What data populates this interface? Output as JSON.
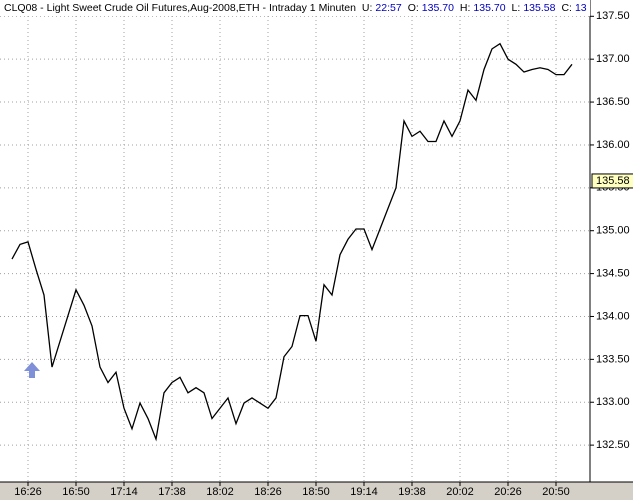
{
  "header": {
    "title": "CLQ08 - Light Sweet Crude Oil Futures,Aug-2008,ETH - Intraday 1 Minuten",
    "stats": [
      {
        "label": "U:",
        "value": "22:57"
      },
      {
        "label": "O:",
        "value": "135.70"
      },
      {
        "label": "H:",
        "value": "135.70"
      },
      {
        "label": "L:",
        "value": "135.58"
      },
      {
        "label": "C:",
        "value": "13"
      }
    ]
  },
  "chart_data": {
    "type": "line",
    "color": "#000000",
    "grid": true,
    "x": [
      "16:18",
      "16:22",
      "16:26",
      "16:30",
      "16:34",
      "16:38",
      "16:42",
      "16:46",
      "16:50",
      "16:54",
      "16:58",
      "17:02",
      "17:06",
      "17:10",
      "17:14",
      "17:18",
      "17:22",
      "17:26",
      "17:30",
      "17:34",
      "17:38",
      "17:42",
      "17:46",
      "17:50",
      "17:54",
      "17:58",
      "18:02",
      "18:06",
      "18:10",
      "18:14",
      "18:18",
      "18:22",
      "18:26",
      "18:30",
      "18:34",
      "18:38",
      "18:42",
      "18:46",
      "18:50",
      "18:54",
      "18:58",
      "19:02",
      "19:06",
      "19:10",
      "19:14",
      "19:18",
      "19:22",
      "19:26",
      "19:30",
      "19:34",
      "19:38",
      "19:42",
      "19:46",
      "19:50",
      "19:54",
      "19:58",
      "20:02",
      "20:06",
      "20:10",
      "20:14",
      "20:18",
      "20:22",
      "20:26",
      "20:30",
      "20:34",
      "20:38",
      "20:42",
      "20:46",
      "20:50",
      "20:54",
      "20:58"
    ],
    "values": [
      134.67,
      134.84,
      134.87,
      134.55,
      134.25,
      133.41,
      133.71,
      134.01,
      134.31,
      134.13,
      133.89,
      133.41,
      133.23,
      133.35,
      132.93,
      132.69,
      132.99,
      132.81,
      132.57,
      133.11,
      133.23,
      133.29,
      133.11,
      133.17,
      133.11,
      132.81,
      132.93,
      133.05,
      132.75,
      132.99,
      133.05,
      132.99,
      132.93,
      133.05,
      133.53,
      133.65,
      134.01,
      134.01,
      133.71,
      134.37,
      134.25,
      134.72,
      134.9,
      135.02,
      135.02,
      134.78,
      135.02,
      135.26,
      135.5,
      136.28,
      136.1,
      136.16,
      136.04,
      136.04,
      136.28,
      136.1,
      136.28,
      136.64,
      136.52,
      136.88,
      137.12,
      137.18,
      137.0,
      136.94,
      136.85,
      136.88,
      136.9,
      136.88,
      136.82,
      136.82,
      136.94
    ],
    "xticks": [
      "16:26",
      "16:50",
      "17:14",
      "17:38",
      "18:02",
      "18:26",
      "18:50",
      "19:14",
      "19:38",
      "20:02",
      "20:26",
      "20:50"
    ],
    "ylim": [
      132.07,
      137.69
    ],
    "yticks": [
      {
        "value": 132.5,
        "label": "132.50"
      },
      {
        "value": 133,
        "label": "133.00"
      },
      {
        "value": 133.5,
        "label": "133.50"
      },
      {
        "value": 134,
        "label": "134.00"
      },
      {
        "value": 134.5,
        "label": "134.50"
      },
      {
        "value": 135,
        "label": "135.00"
      },
      {
        "value": 135.5,
        "label": "135.50"
      },
      {
        "value": 136,
        "label": "136.00"
      },
      {
        "value": 136.5,
        "label": "136.50"
      },
      {
        "value": 137,
        "label": "137.00"
      },
      {
        "value": 137.5,
        "label": "137.50"
      }
    ],
    "last_price": {
      "value": 135.58,
      "label": "135.58"
    }
  }
}
